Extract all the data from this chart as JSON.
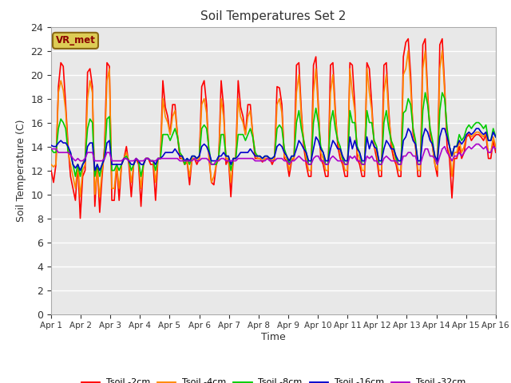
{
  "title": "Soil Temperatures Set 2",
  "xlabel": "Time",
  "ylabel": "Soil Temperature (C)",
  "xlim": [
    0,
    15
  ],
  "ylim": [
    0,
    24
  ],
  "yticks": [
    0,
    2,
    4,
    6,
    8,
    10,
    12,
    14,
    16,
    18,
    20,
    22,
    24
  ],
  "xtick_labels": [
    "Apr 1",
    "Apr 2",
    "Apr 3",
    "Apr 4",
    "Apr 5",
    "Apr 6",
    "Apr 7",
    "Apr 8",
    "Apr 9",
    "Apr 10",
    "Apr 11",
    "Apr 12",
    "Apr 13",
    "Apr 14",
    "Apr 15",
    "Apr 16"
  ],
  "fig_bg": "#ffffff",
  "plot_bg": "#e8e8e8",
  "grid_color": "#ffffff",
  "annotation_text": "VR_met",
  "annotation_bg": "#ddcc55",
  "annotation_border": "#8B6914",
  "series_colors": [
    "#ff0000",
    "#ff8800",
    "#00cc00",
    "#0000cc",
    "#aa00cc"
  ],
  "series_names": [
    "Tsoil -2cm",
    "Tsoil -4cm",
    "Tsoil -8cm",
    "Tsoil -16cm",
    "Tsoil -32cm"
  ],
  "t2cm": [
    12.0,
    11.0,
    12.5,
    19.0,
    21.0,
    20.7,
    17.5,
    14.0,
    11.5,
    10.5,
    9.5,
    12.5,
    8.0,
    11.5,
    12.0,
    20.2,
    20.5,
    19.0,
    9.0,
    12.5,
    8.5,
    11.5,
    14.0,
    21.0,
    20.7,
    9.5,
    9.5,
    12.5,
    9.5,
    12.5,
    13.0,
    14.0,
    12.5,
    9.8,
    12.5,
    13.0,
    12.5,
    9.0,
    12.5,
    13.0,
    13.0,
    12.5,
    12.5,
    9.5,
    13.0,
    13.0,
    19.5,
    17.3,
    16.5,
    15.0,
    17.5,
    17.5,
    15.0,
    13.0,
    13.0,
    12.5,
    12.7,
    10.8,
    13.0,
    13.0,
    12.5,
    13.0,
    19.0,
    19.5,
    17.5,
    13.0,
    11.0,
    10.8,
    12.5,
    13.0,
    19.5,
    17.3,
    12.5,
    13.0,
    9.8,
    13.0,
    13.0,
    19.5,
    17.3,
    16.5,
    15.0,
    17.5,
    17.5,
    15.0,
    13.0,
    13.0,
    13.0,
    12.7,
    13.0,
    13.0,
    13.0,
    12.5,
    13.0,
    19.0,
    18.9,
    17.5,
    13.0,
    12.8,
    11.5,
    12.8,
    13.0,
    20.8,
    21.0,
    17.0,
    14.0,
    12.5,
    11.5,
    11.5,
    20.8,
    21.5,
    17.5,
    13.0,
    12.5,
    11.5,
    11.5,
    20.8,
    21.0,
    17.0,
    14.0,
    13.0,
    12.5,
    11.5,
    11.5,
    21.0,
    20.8,
    17.5,
    13.0,
    12.5,
    11.5,
    11.5,
    21.0,
    20.5,
    17.5,
    14.0,
    13.0,
    11.5,
    11.5,
    20.8,
    21.0,
    17.0,
    14.0,
    13.0,
    12.5,
    11.5,
    11.5,
    21.5,
    22.7,
    23.0,
    20.0,
    15.0,
    14.0,
    11.5,
    11.5,
    22.5,
    23.0,
    18.5,
    15.0,
    14.0,
    12.5,
    11.5,
    22.5,
    23.0,
    19.0,
    14.0,
    13.0,
    9.7,
    13.0,
    13.0,
    14.0,
    13.0,
    13.5,
    14.8,
    15.0,
    14.5,
    14.8,
    15.0,
    15.0,
    14.8,
    14.5,
    15.0,
    13.0,
    13.0,
    14.5,
    13.5
  ],
  "t4cm": [
    12.5,
    12.3,
    12.5,
    18.5,
    19.5,
    18.7,
    17.0,
    13.5,
    12.5,
    11.5,
    10.5,
    12.5,
    9.8,
    12.0,
    12.5,
    18.0,
    19.5,
    18.5,
    10.0,
    12.0,
    9.8,
    12.0,
    13.5,
    19.5,
    20.5,
    10.5,
    10.5,
    12.5,
    10.5,
    12.5,
    13.0,
    13.5,
    12.8,
    11.0,
    12.5,
    13.0,
    12.8,
    10.5,
    12.5,
    13.0,
    13.0,
    12.8,
    12.8,
    11.0,
    13.0,
    13.0,
    18.0,
    16.5,
    16.0,
    15.0,
    16.5,
    17.0,
    15.0,
    13.5,
    13.0,
    12.5,
    12.8,
    11.5,
    13.0,
    13.0,
    12.8,
    13.0,
    17.5,
    18.0,
    16.8,
    13.2,
    11.0,
    11.5,
    12.5,
    13.0,
    18.0,
    16.5,
    13.0,
    13.0,
    11.0,
    13.0,
    13.0,
    18.0,
    16.5,
    16.0,
    15.0,
    16.5,
    17.0,
    15.0,
    13.5,
    13.0,
    13.0,
    12.8,
    13.0,
    13.0,
    13.0,
    12.8,
    13.0,
    17.5,
    18.0,
    16.8,
    13.2,
    13.0,
    12.0,
    13.0,
    13.0,
    18.5,
    20.0,
    16.5,
    14.5,
    13.0,
    12.0,
    12.0,
    18.5,
    20.5,
    17.0,
    13.5,
    13.0,
    12.0,
    12.0,
    18.5,
    20.0,
    16.5,
    14.5,
    13.5,
    12.8,
    12.0,
    12.0,
    20.5,
    18.5,
    17.0,
    13.5,
    13.0,
    12.0,
    12.0,
    20.5,
    18.5,
    17.0,
    14.0,
    13.5,
    12.0,
    12.0,
    18.5,
    20.0,
    16.5,
    14.5,
    13.5,
    12.8,
    12.0,
    12.0,
    20.0,
    20.5,
    22.0,
    19.0,
    15.5,
    14.0,
    12.0,
    12.0,
    20.5,
    22.0,
    18.0,
    15.5,
    14.0,
    12.5,
    12.0,
    20.5,
    22.0,
    18.5,
    15.0,
    14.0,
    11.5,
    13.5,
    13.5,
    14.5,
    13.5,
    14.0,
    15.0,
    15.2,
    14.8,
    15.0,
    15.2,
    15.2,
    15.0,
    14.8,
    15.2,
    13.5,
    13.5,
    14.8,
    14.0
  ],
  "t8cm": [
    13.8,
    13.5,
    13.5,
    15.5,
    16.3,
    16.0,
    15.5,
    13.5,
    13.5,
    12.5,
    11.5,
    12.5,
    11.5,
    12.5,
    13.0,
    15.5,
    16.3,
    16.0,
    11.5,
    12.5,
    11.5,
    12.5,
    13.2,
    16.3,
    16.5,
    12.0,
    12.0,
    12.5,
    12.0,
    12.5,
    13.0,
    13.2,
    12.8,
    12.0,
    12.5,
    13.0,
    12.8,
    11.5,
    12.5,
    13.0,
    13.0,
    12.8,
    12.8,
    12.0,
    13.0,
    13.0,
    15.0,
    15.0,
    15.0,
    14.5,
    15.0,
    15.5,
    14.8,
    13.5,
    13.2,
    12.5,
    13.0,
    12.5,
    13.2,
    13.2,
    13.0,
    13.2,
    15.5,
    15.8,
    15.5,
    13.8,
    12.5,
    12.5,
    12.5,
    13.2,
    15.0,
    15.0,
    13.2,
    13.2,
    12.0,
    13.0,
    13.0,
    15.0,
    15.0,
    15.0,
    14.5,
    15.0,
    15.5,
    14.8,
    13.5,
    13.2,
    13.2,
    13.0,
    13.2,
    13.2,
    13.0,
    13.0,
    13.2,
    15.5,
    15.8,
    15.5,
    13.8,
    13.2,
    12.5,
    13.2,
    13.2,
    16.0,
    17.0,
    15.5,
    14.5,
    13.5,
    12.5,
    12.5,
    16.0,
    17.2,
    16.0,
    14.0,
    13.5,
    12.5,
    12.5,
    16.0,
    17.0,
    15.5,
    14.5,
    14.0,
    13.0,
    12.5,
    12.5,
    17.0,
    16.0,
    16.0,
    14.0,
    13.5,
    12.5,
    12.5,
    17.0,
    16.0,
    16.0,
    14.5,
    14.0,
    12.5,
    12.5,
    16.0,
    17.0,
    15.5,
    14.5,
    14.0,
    13.0,
    12.5,
    12.5,
    16.8,
    17.0,
    18.0,
    17.5,
    15.5,
    14.5,
    12.5,
    12.5,
    17.0,
    18.5,
    17.5,
    15.5,
    14.5,
    13.0,
    12.5,
    17.0,
    18.5,
    18.0,
    15.5,
    14.0,
    13.2,
    14.0,
    14.0,
    15.0,
    14.5,
    14.8,
    15.5,
    15.8,
    15.5,
    15.8,
    16.0,
    16.0,
    15.8,
    15.5,
    15.8,
    14.5,
    14.5,
    15.5,
    14.8
  ],
  "t16cm": [
    14.1,
    14.0,
    14.0,
    14.3,
    14.5,
    14.3,
    14.3,
    14.0,
    13.5,
    12.5,
    12.2,
    12.5,
    12.0,
    12.5,
    12.8,
    14.0,
    14.3,
    14.3,
    12.0,
    12.5,
    12.0,
    12.5,
    13.0,
    14.3,
    14.5,
    12.5,
    12.5,
    12.5,
    12.5,
    12.5,
    13.0,
    13.0,
    12.8,
    12.5,
    12.5,
    13.0,
    12.8,
    12.5,
    12.5,
    13.0,
    13.0,
    12.8,
    12.8,
    12.5,
    13.0,
    13.0,
    13.2,
    13.5,
    13.5,
    13.5,
    13.5,
    13.8,
    13.5,
    13.2,
    13.2,
    12.8,
    13.0,
    12.8,
    13.2,
    13.2,
    13.0,
    13.2,
    14.0,
    14.2,
    14.0,
    13.5,
    12.8,
    12.8,
    12.8,
    13.2,
    13.2,
    13.5,
    13.2,
    13.2,
    12.5,
    13.0,
    13.0,
    13.2,
    13.5,
    13.5,
    13.5,
    13.5,
    13.8,
    13.5,
    13.2,
    13.2,
    13.2,
    13.0,
    13.2,
    13.2,
    13.0,
    13.0,
    13.2,
    14.0,
    14.2,
    14.0,
    13.5,
    13.2,
    12.8,
    13.2,
    13.2,
    13.8,
    14.5,
    14.2,
    13.8,
    13.5,
    12.8,
    12.8,
    13.8,
    14.8,
    14.5,
    13.8,
    13.5,
    12.8,
    12.8,
    13.8,
    14.5,
    14.2,
    13.8,
    13.8,
    13.2,
    12.8,
    12.8,
    14.8,
    13.8,
    14.5,
    13.8,
    13.5,
    12.8,
    12.8,
    14.8,
    13.8,
    14.5,
    14.0,
    13.8,
    12.8,
    12.8,
    13.8,
    14.5,
    14.2,
    13.8,
    13.8,
    13.2,
    12.8,
    12.8,
    14.5,
    14.8,
    15.5,
    15.2,
    14.5,
    14.2,
    12.8,
    12.8,
    14.8,
    15.5,
    15.2,
    14.5,
    14.2,
    13.2,
    12.8,
    14.8,
    15.5,
    15.5,
    14.8,
    14.0,
    13.2,
    14.0,
    14.0,
    14.5,
    14.2,
    14.5,
    15.0,
    15.2,
    15.0,
    15.2,
    15.5,
    15.5,
    15.2,
    15.0,
    15.2,
    14.5,
    14.5,
    15.2,
    14.8
  ],
  "t32cm": [
    13.8,
    13.8,
    13.8,
    13.5,
    13.5,
    13.5,
    13.5,
    13.5,
    13.3,
    13.0,
    12.8,
    13.0,
    12.8,
    12.8,
    13.0,
    13.5,
    13.5,
    13.5,
    12.8,
    12.8,
    12.8,
    12.8,
    13.0,
    13.5,
    13.5,
    12.8,
    12.8,
    12.8,
    12.8,
    12.8,
    13.0,
    13.0,
    12.8,
    12.8,
    12.8,
    13.0,
    12.8,
    12.8,
    12.8,
    13.0,
    13.0,
    12.8,
    12.8,
    12.8,
    13.0,
    13.0,
    13.0,
    13.0,
    13.0,
    13.0,
    13.0,
    13.0,
    13.0,
    12.8,
    12.8,
    12.8,
    12.8,
    12.8,
    12.8,
    13.0,
    12.8,
    12.8,
    13.0,
    13.0,
    13.0,
    12.8,
    12.5,
    12.5,
    12.8,
    12.8,
    13.0,
    13.0,
    12.8,
    12.8,
    12.8,
    12.8,
    12.8,
    13.0,
    13.0,
    13.0,
    13.0,
    13.0,
    13.0,
    13.0,
    12.8,
    12.8,
    12.8,
    12.8,
    12.8,
    13.0,
    12.8,
    12.8,
    12.8,
    13.0,
    13.0,
    13.0,
    12.8,
    12.8,
    12.5,
    12.8,
    12.8,
    13.0,
    13.2,
    13.0,
    12.8,
    12.8,
    12.5,
    12.5,
    13.0,
    13.2,
    13.2,
    12.8,
    12.8,
    12.5,
    12.5,
    13.0,
    13.2,
    13.0,
    12.8,
    12.8,
    12.8,
    12.5,
    12.5,
    13.2,
    13.0,
    13.2,
    12.8,
    12.8,
    12.5,
    12.5,
    13.2,
    13.0,
    13.2,
    12.8,
    12.8,
    12.5,
    12.5,
    13.0,
    13.2,
    13.0,
    12.8,
    12.8,
    12.8,
    12.5,
    12.5,
    13.2,
    13.2,
    13.5,
    13.5,
    13.2,
    13.2,
    12.5,
    12.5,
    13.2,
    13.8,
    13.8,
    13.2,
    13.2,
    13.0,
    12.5,
    13.2,
    13.8,
    14.0,
    13.5,
    13.2,
    12.8,
    13.2,
    13.2,
    13.5,
    13.2,
    13.5,
    13.8,
    14.0,
    13.8,
    14.0,
    14.2,
    14.2,
    14.0,
    13.8,
    14.0,
    13.5,
    13.5,
    14.0,
    13.8
  ]
}
